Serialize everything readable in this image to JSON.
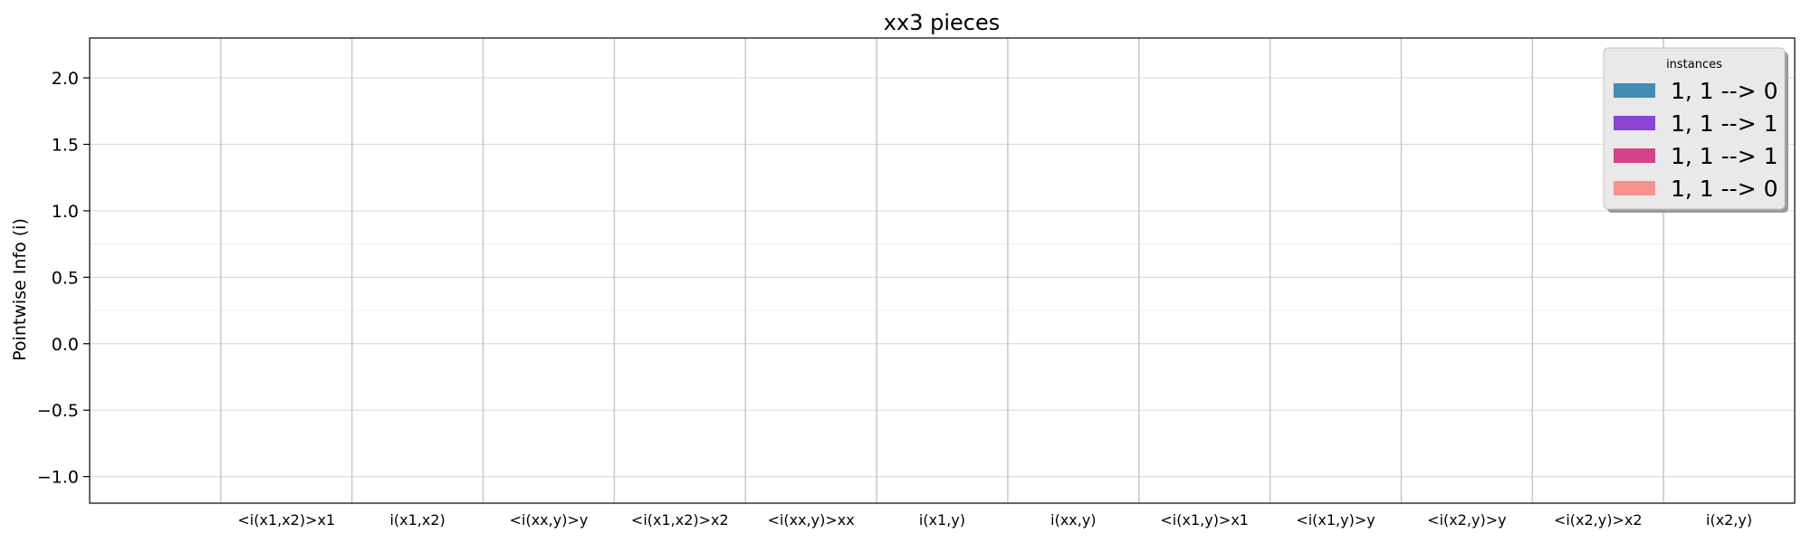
{
  "chart_data": {
    "type": "bar",
    "title": "xx3 pieces",
    "xlabel": "",
    "ylabel": "Pointwise Info (i)",
    "ylim": [
      -1.2,
      2.3
    ],
    "yticks": [
      2.0,
      1.5,
      1.0,
      0.5,
      0.0,
      -0.5,
      -1.0
    ],
    "ytick_labels": [
      "2.0",
      "1.5",
      "1.0",
      "0.5",
      "0.0",
      "−0.5",
      "−1.0"
    ],
    "minor_grid_y": [
      0.75,
      0.25
    ],
    "grid": true,
    "categories": [
      "<i(x1,x2)>x1",
      "i(x1,x2)",
      "<i(xx,y)>y",
      "<i(x1,x2)>x2",
      "<i(xx,y)>xx",
      "i(x1,y)",
      "i(xx,y)",
      "<i(x1,y)>x1",
      "<i(x1,y)>y",
      "<i(x2,y)>y",
      "<i(x2,y)>x2",
      "i(x2,y)"
    ],
    "series": [
      {
        "name": "1, 1 --> 0",
        "color": "#458cb5",
        "values": [
          null,
          null,
          null,
          null,
          null,
          null,
          null,
          null,
          null,
          null,
          null,
          null
        ]
      },
      {
        "name": "1, 1 --> 1",
        "color": "#8845d6",
        "values": [
          null,
          null,
          null,
          null,
          null,
          null,
          null,
          null,
          null,
          null,
          null,
          null
        ]
      },
      {
        "name": "1, 1 --> 1",
        "color": "#d4438a",
        "values": [
          null,
          null,
          null,
          null,
          null,
          null,
          null,
          null,
          null,
          null,
          null,
          null
        ]
      },
      {
        "name": "1, 1 --> 0",
        "color": "#f59290",
        "values": [
          null,
          null,
          null,
          null,
          null,
          null,
          null,
          null,
          null,
          null,
          null,
          null
        ]
      }
    ],
    "legend": {
      "title": "instances",
      "placement": "top-right"
    }
  }
}
